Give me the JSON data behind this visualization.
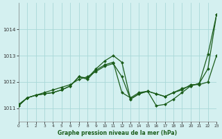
{
  "title": "Graphe pression niveau de la mer (hPa)",
  "bg_color": "#d4f0f0",
  "grid_color": "#a8d8d8",
  "line_color": "#1a5c1a",
  "xlim": [
    0,
    23
  ],
  "ylim": [
    1010.5,
    1015.0
  ],
  "yticks": [
    1011,
    1012,
    1013,
    1014
  ],
  "xticks": [
    0,
    1,
    2,
    3,
    4,
    5,
    6,
    7,
    8,
    9,
    10,
    11,
    12,
    13,
    14,
    15,
    16,
    17,
    18,
    19,
    20,
    21,
    22,
    23
  ],
  "s1": [
    1011.1,
    1011.4,
    1011.5,
    1011.6,
    1011.7,
    1011.8,
    1011.9,
    1012.1,
    1012.2,
    1012.4,
    1012.6,
    1012.7,
    1012.2,
    1011.35,
    1011.55,
    1011.65,
    1011.55,
    1011.45,
    1011.6,
    1011.7,
    1011.9,
    1011.9,
    1012.0,
    1013.0
  ],
  "s2": [
    1011.1,
    1011.4,
    1011.5,
    1011.55,
    1011.6,
    1011.7,
    1011.85,
    1012.2,
    1012.15,
    1012.5,
    1012.8,
    1013.0,
    1012.75,
    1011.35,
    1011.55,
    1011.65,
    1011.1,
    1011.15,
    1011.35,
    1011.6,
    1011.85,
    1011.95,
    1013.05,
    1014.55
  ],
  "s3": [
    1011.15,
    1011.4,
    1011.5,
    1011.55,
    1011.6,
    1011.7,
    1011.85,
    1012.2,
    1012.1,
    1012.45,
    1012.65,
    1012.75,
    1011.6,
    1011.4,
    1011.6,
    1011.65,
    1011.55,
    1011.45,
    1011.6,
    1011.75,
    1011.85,
    1011.95,
    1012.5,
    1014.55
  ]
}
